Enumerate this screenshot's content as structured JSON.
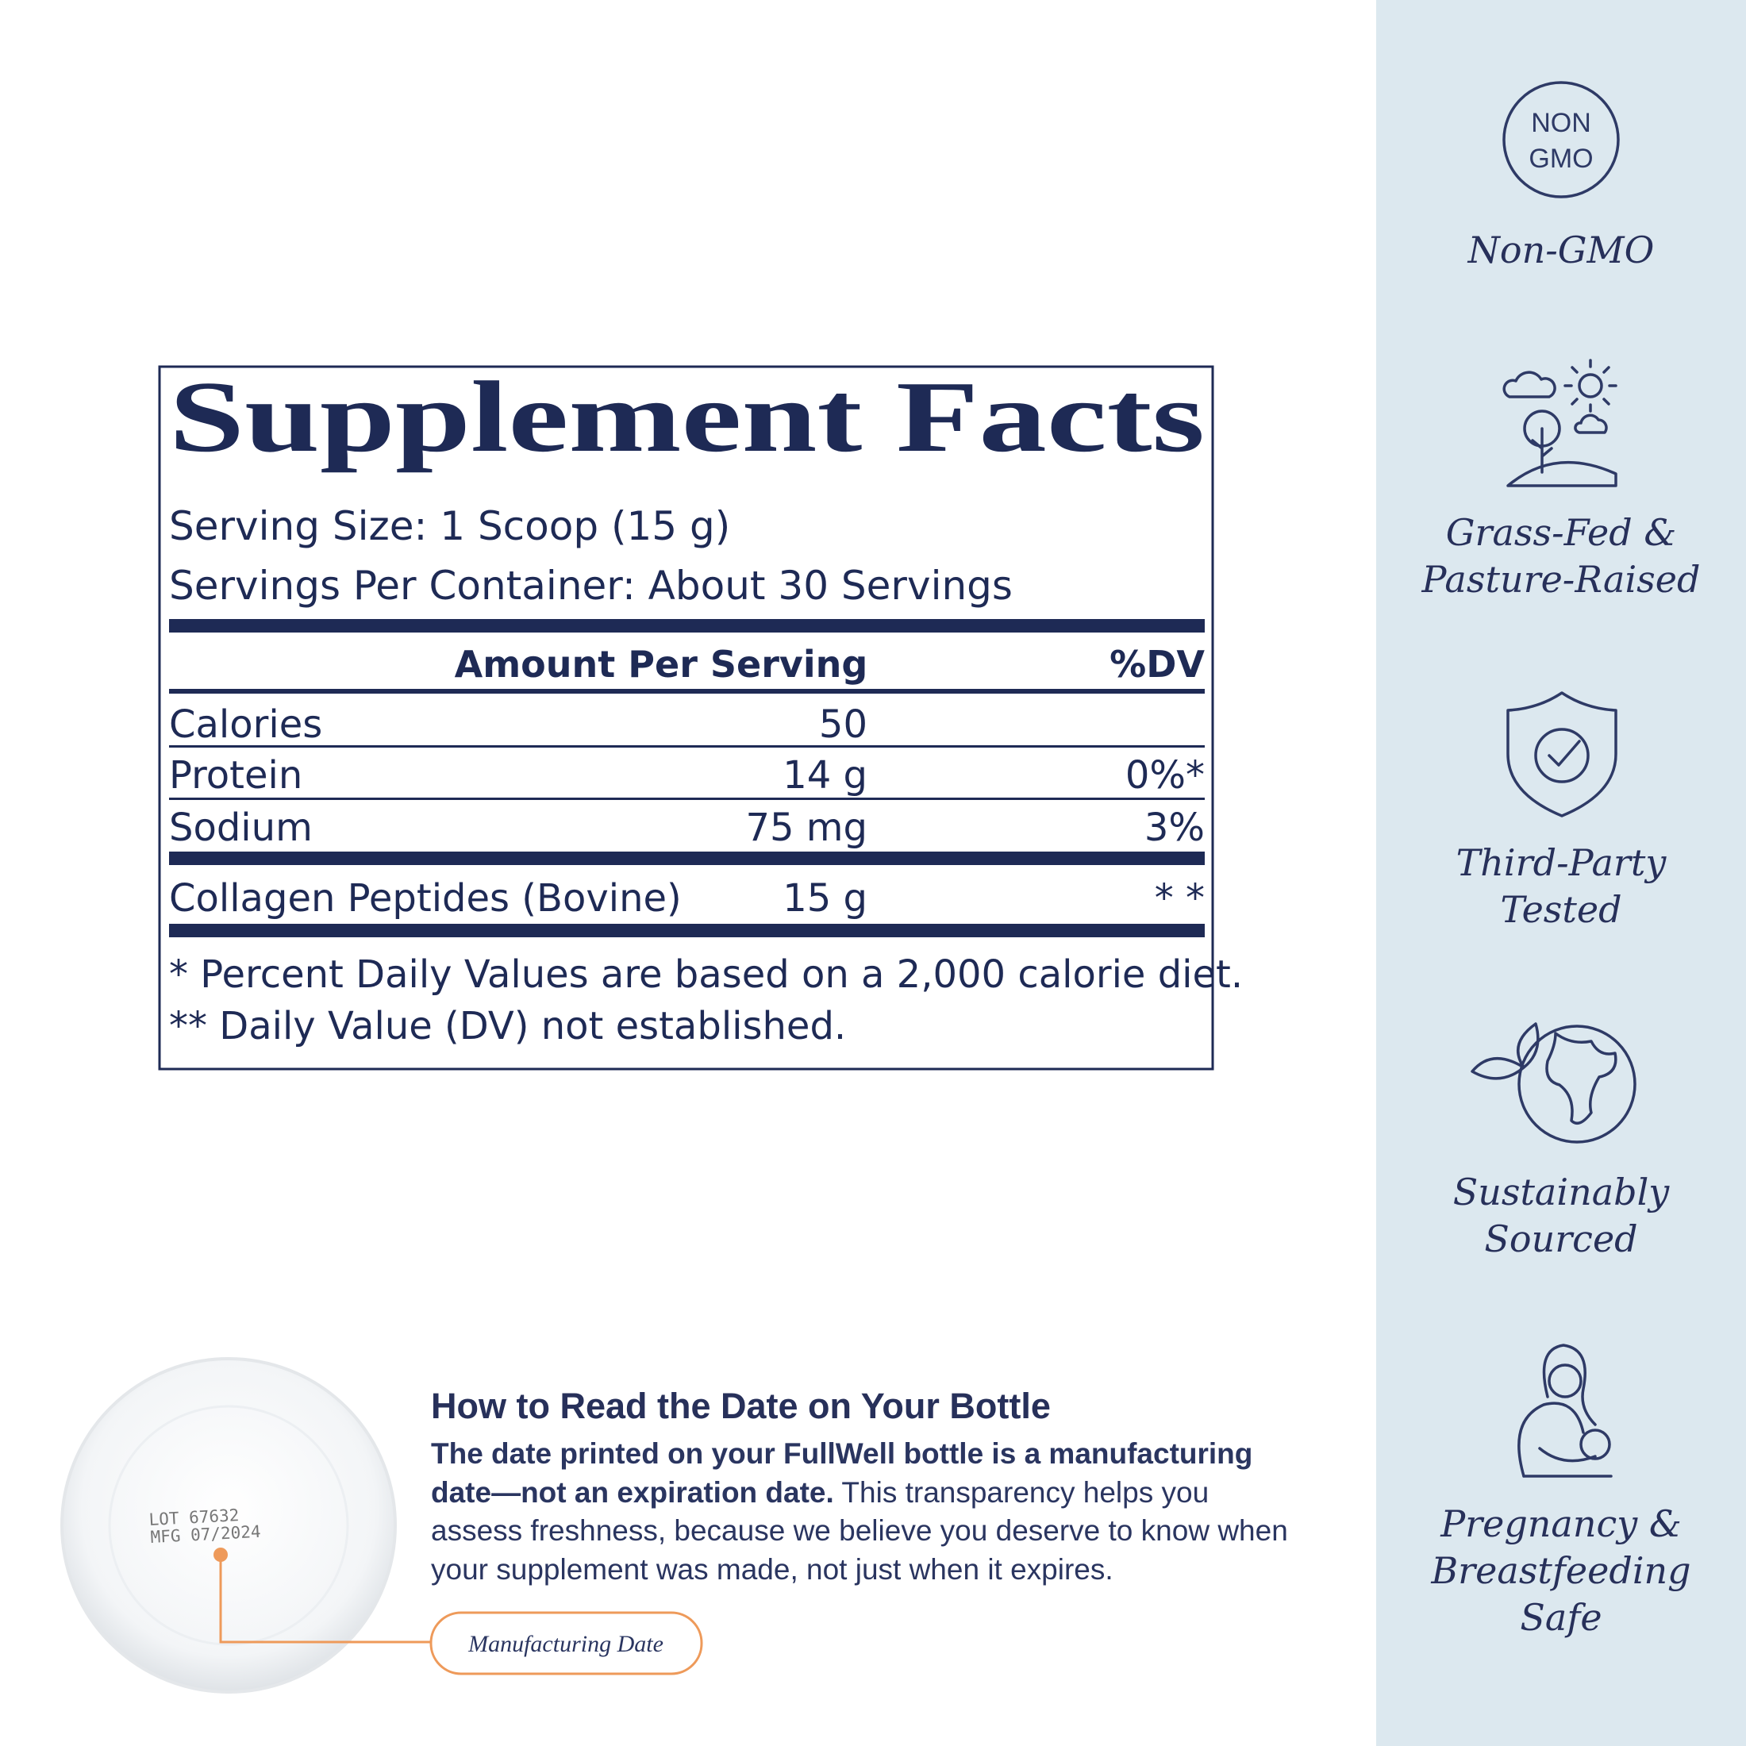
{
  "panel": {
    "title": "Supplement Facts",
    "serving_size": "Serving Size: 1 Scoop (15 g)",
    "servings_per_container": "Servings Per Container: About 30 Servings",
    "header": {
      "amount": "Amount Per Serving",
      "dv": "%DV"
    },
    "rows": [
      {
        "name": "Calories",
        "amount": "50"
      },
      {
        "name": "Protein",
        "amount": "14 g",
        "dv": "0%*"
      },
      {
        "name": "Sodium",
        "amount": "75 mg",
        "dv": "3%"
      },
      {
        "name": "Collagen Peptides (Bovine)",
        "amount": "15 g",
        "dv": "* *"
      }
    ],
    "footnotes": [
      "* Percent Daily Values are based on a 2,000 calorie diet.",
      "** Daily Value (DV) not established."
    ]
  },
  "date_guide": {
    "heading": "How to Read the Date on Your Bottle",
    "text_bold": "The date printed on your FullWell bottle is a manufacturing date—not an expiration date.",
    "text": "This transparency helps you assess freshness, because we believe you deserve to know when your supplement was made, not just when it expires.",
    "cap_lot": "LOT 67632",
    "cap_mfg": "MFG 07/2024",
    "callout": "Manufacturing Date"
  },
  "badges": [
    {
      "icon_text": [
        "NON",
        "GMO"
      ],
      "label": [
        "Non-GMO"
      ]
    },
    {
      "label": [
        "Grass-Fed &",
        "Pasture-Raised"
      ]
    },
    {
      "label": [
        "Third-Party",
        "Tested"
      ]
    },
    {
      "label": [
        "Sustainably",
        "Sourced"
      ]
    },
    {
      "label": [
        "Pregnancy &",
        "Breastfeeding",
        "Safe"
      ]
    }
  ]
}
